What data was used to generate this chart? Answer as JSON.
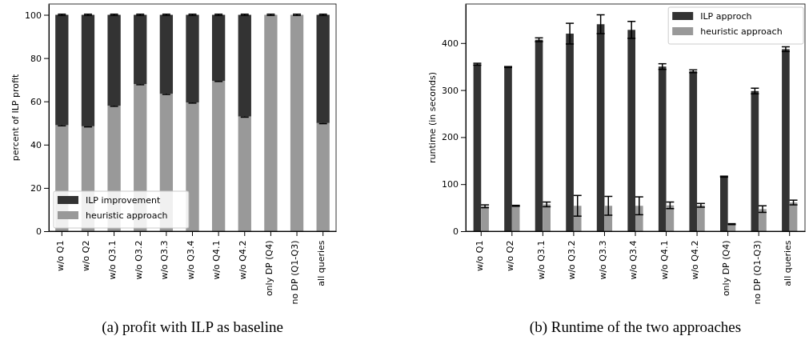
{
  "chart_data": [
    {
      "type": "bar",
      "title": "(a) profit with ILP as baseline",
      "ylabel": "percent of ILP profit",
      "stacked": true,
      "categories": [
        "w/o Q1",
        "w/o Q2",
        "w/o Q3.1",
        "w/o Q3.2",
        "w/o Q3.3",
        "w/o Q3.4",
        "w/o Q4.1",
        "w/o Q4.2",
        "only DP (Q4)",
        "no DP (Q1-Q3)",
        "all queries"
      ],
      "series": [
        {
          "name": "heuristic approach",
          "color": "#999999",
          "values": [
            49,
            48.5,
            58,
            68,
            63.5,
            59.5,
            69.5,
            53,
            100,
            100,
            50
          ],
          "errors": [
            0.3,
            0.3,
            0.3,
            0.3,
            0.3,
            0.3,
            0.3,
            0.3,
            0.3,
            0.3,
            0.3
          ]
        },
        {
          "name": "ILP improvement",
          "color": "#333333",
          "values": [
            51,
            51.5,
            42,
            32,
            36.5,
            40.5,
            30.5,
            47,
            0,
            0,
            50
          ],
          "errors": [
            0.3,
            0.3,
            0.3,
            0.3,
            0.3,
            0.3,
            0.3,
            0.3,
            null,
            null,
            0.3
          ]
        }
      ],
      "ylim": [
        0,
        105
      ],
      "yticks": [
        0,
        20,
        40,
        60,
        80,
        100
      ],
      "legend": "bottom left",
      "grid": false
    },
    {
      "type": "bar",
      "title": "(b) Runtime of the two approaches",
      "ylabel": "runtime (in seconds)",
      "categories": [
        "w/o Q1",
        "w/o Q2",
        "w/o Q3.1",
        "w/o Q3.2",
        "w/o Q3.3",
        "w/o Q3.4",
        "w/o Q4.1",
        "w/o Q4.2",
        "only DP (Q4)",
        "no DP (Q1-Q3)",
        "all queries"
      ],
      "series": [
        {
          "name": "ILP approch",
          "color": "#333333",
          "values": [
            355,
            349,
            407,
            420,
            440,
            428,
            350,
            340,
            116,
            298,
            387
          ],
          "errors": [
            2,
            1,
            4,
            22,
            20,
            18,
            6,
            3,
            1,
            6,
            5
          ]
        },
        {
          "name": "heuristic approach",
          "color": "#999999",
          "values": [
            53,
            54,
            57,
            54,
            54,
            54,
            55,
            55,
            15,
            47,
            61
          ],
          "errors": [
            3,
            1,
            5,
            22,
            20,
            19,
            7,
            4,
            1,
            7,
            5
          ]
        }
      ],
      "ylim": [
        0,
        483
      ],
      "yticks": [
        0,
        100,
        200,
        300,
        400
      ],
      "legend": "top right",
      "grid": false
    }
  ]
}
